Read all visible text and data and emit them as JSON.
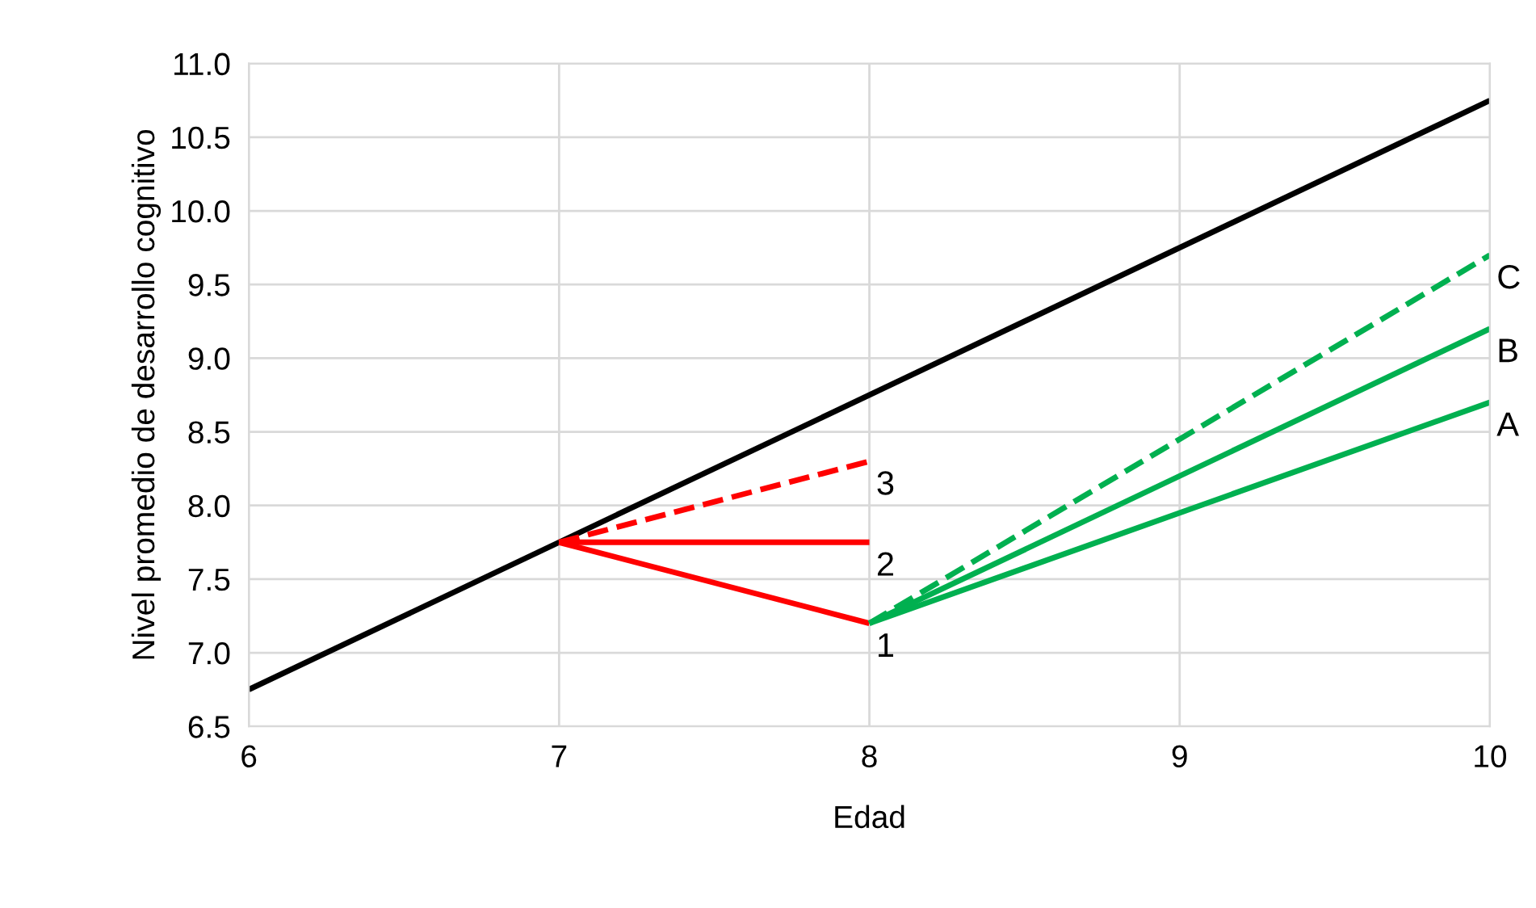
{
  "chart_data": {
    "type": "line",
    "xlabel": "Edad",
    "ylabel": "Nivel promedio de desarrollo cognitivo",
    "xlim": [
      6,
      10
    ],
    "xticks": [
      6,
      7,
      8,
      9,
      10
    ],
    "ylim": [
      6.5,
      11
    ],
    "yticks": [
      6.5,
      {
        "value": 7,
        "label": "7.0"
      },
      7.5,
      {
        "value": 8,
        "label": "8.0"
      },
      8.5,
      {
        "value": 9,
        "label": "9.0"
      },
      9.5,
      {
        "value": 10,
        "label": "10.0"
      },
      10.5,
      {
        "value": 11,
        "label": "11.0"
      }
    ],
    "grid": true,
    "legend": false,
    "marker": "none",
    "series": [
      {
        "color": "#000000",
        "x": [
          6,
          10
        ],
        "values": [
          6.75,
          10.75
        ],
        "line_style": "solid"
      },
      {
        "color": "#ff0000",
        "x": [
          7,
          8
        ],
        "values": [
          7.75,
          7.2
        ],
        "line_style": "solid"
      },
      {
        "color": "#ff0000",
        "x": [
          7,
          8
        ],
        "values": [
          7.75,
          7.75
        ],
        "line_style": "solid"
      },
      {
        "color": "#ff0000",
        "x": [
          7,
          8
        ],
        "values": [
          7.75,
          8.3
        ],
        "line_style": "dashed"
      },
      {
        "color": "#00b050",
        "x": [
          8,
          10
        ],
        "values": [
          7.2,
          8.7
        ],
        "line_style": "solid"
      },
      {
        "color": "#00b050",
        "x": [
          8,
          10
        ],
        "values": [
          7.2,
          9.2
        ],
        "line_style": "solid"
      },
      {
        "color": "#00b050",
        "x": [
          8,
          10
        ],
        "values": [
          7.2,
          9.7
        ],
        "line_style": "dashed"
      }
    ],
    "annotations": [
      "1",
      "2",
      "3",
      "A",
      "B",
      "C"
    ]
  }
}
